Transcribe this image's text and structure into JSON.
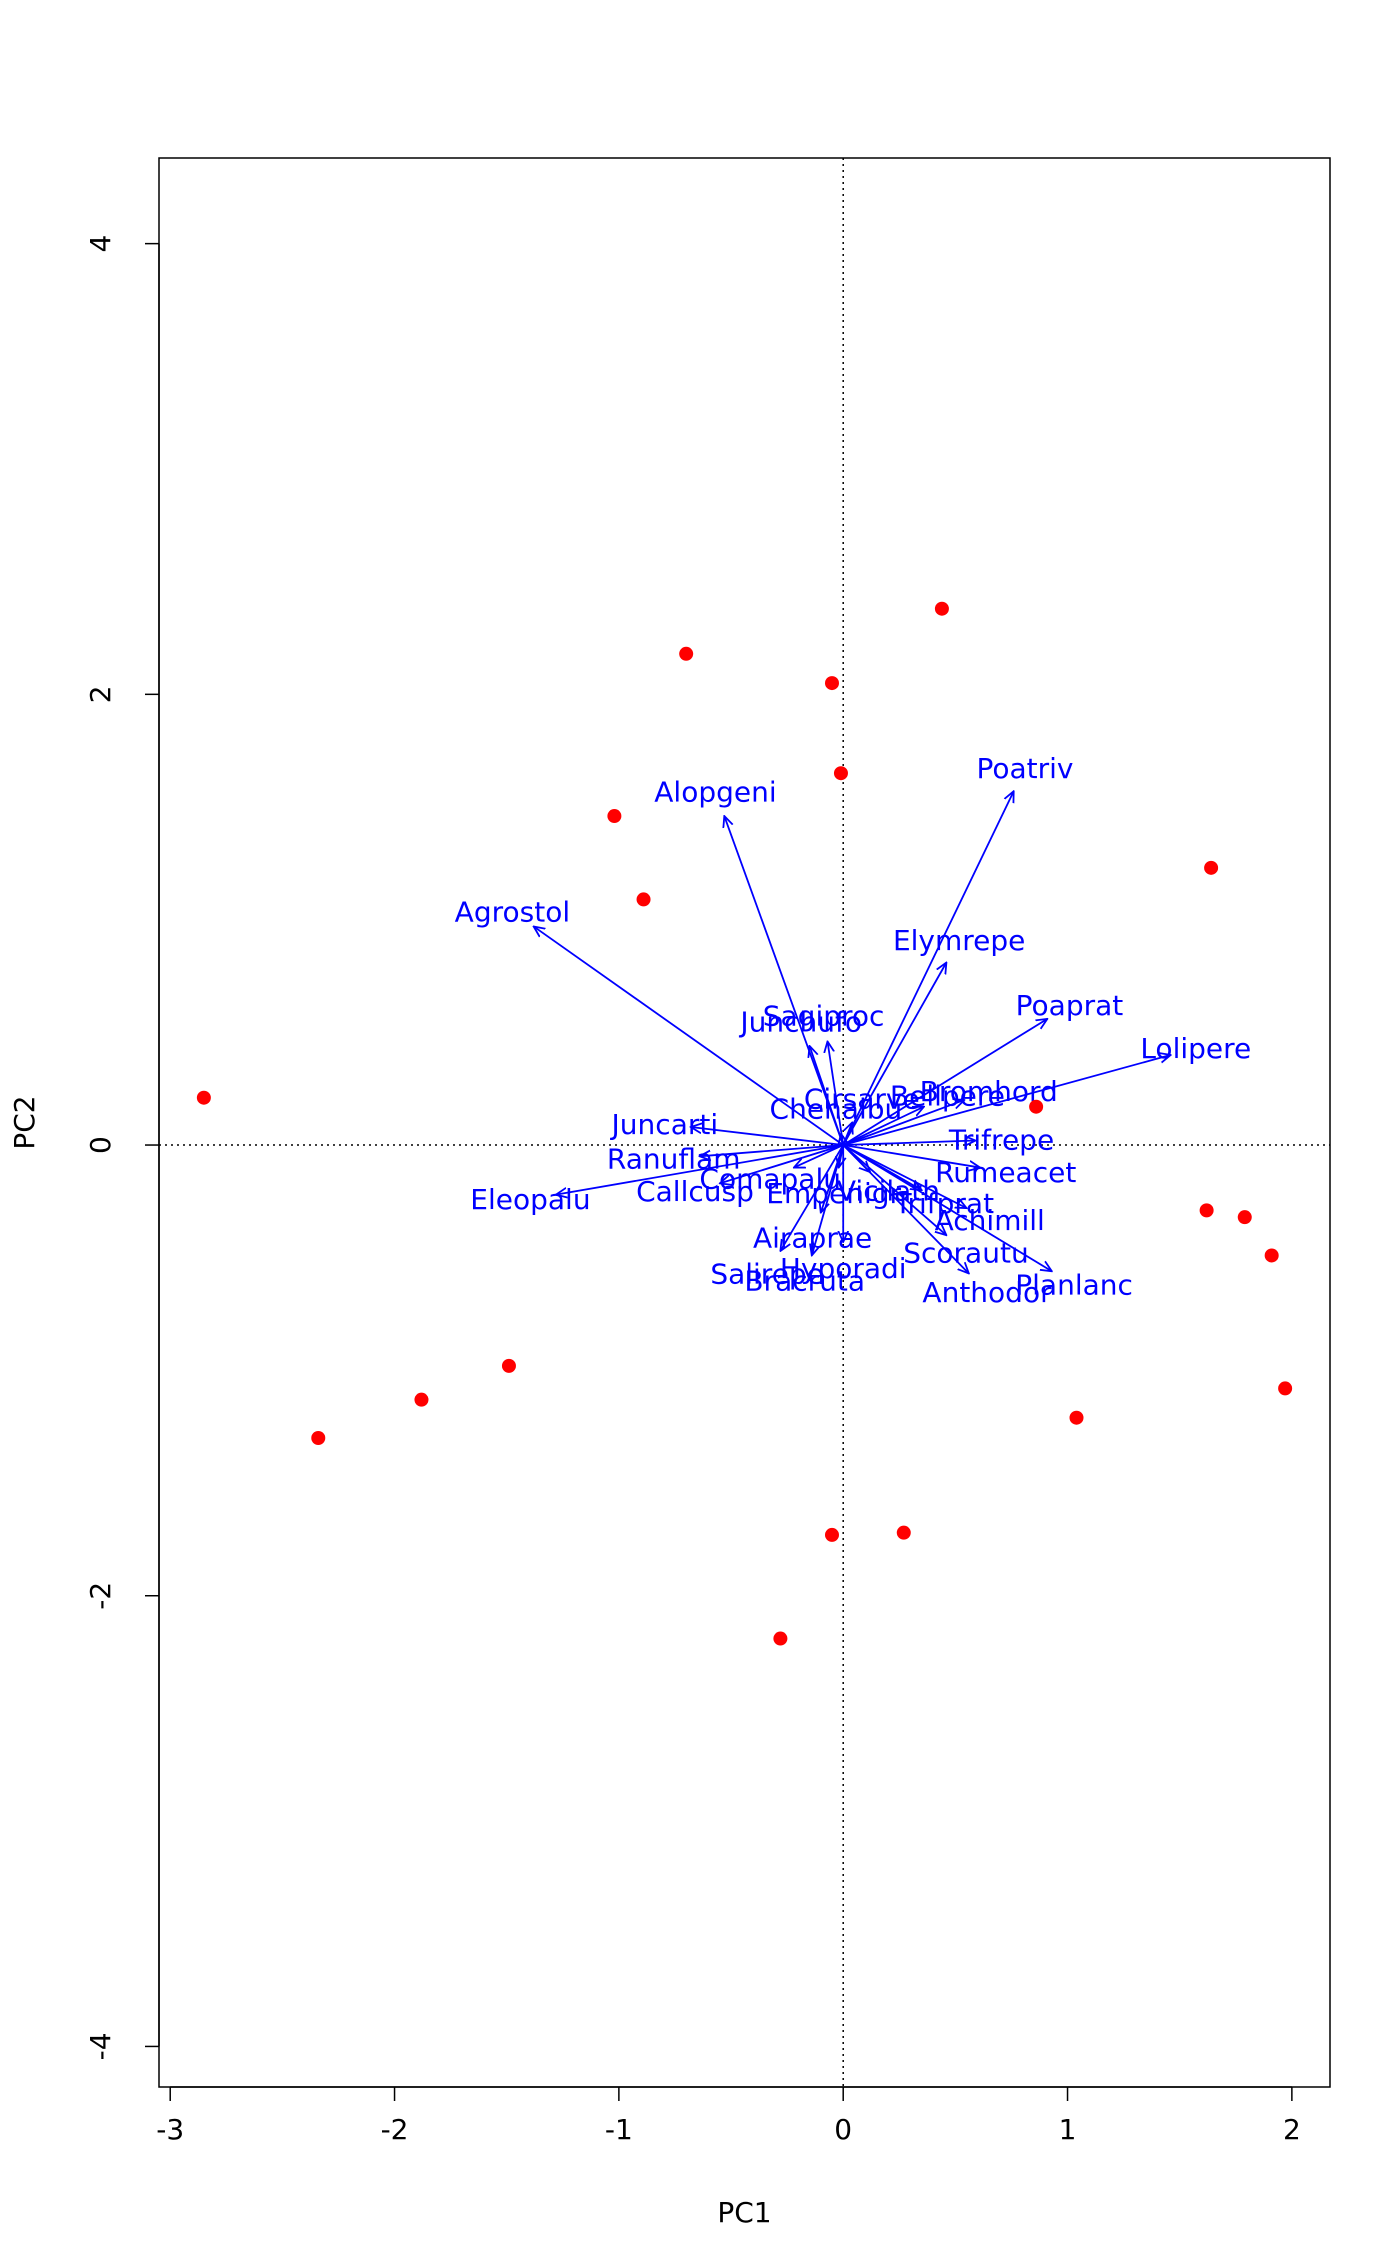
{
  "chart_data": {
    "type": "scatter",
    "title": "",
    "xlabel": "PC1",
    "ylabel": "PC2",
    "xlim": [
      -3.05,
      2.17
    ],
    "ylim": [
      -4.18,
      4.38
    ],
    "x_ticks": [
      -3,
      -2,
      -1,
      0,
      1,
      2
    ],
    "y_ticks": [
      -4,
      -2,
      0,
      2,
      4
    ],
    "grid": false,
    "reference_lines": {
      "x": 0,
      "y": 0,
      "style": "dotted"
    },
    "point_color": "#ff0000",
    "arrow_color": "#0000ff",
    "sites": [
      {
        "x": -2.85,
        "y": 0.21
      },
      {
        "x": -2.34,
        "y": -1.3
      },
      {
        "x": -1.88,
        "y": -1.13
      },
      {
        "x": -1.49,
        "y": -0.98
      },
      {
        "x": -1.02,
        "y": 1.46
      },
      {
        "x": -0.89,
        "y": 1.09
      },
      {
        "x": -0.7,
        "y": 2.18
      },
      {
        "x": -0.05,
        "y": 2.05
      },
      {
        "x": -0.01,
        "y": 1.65
      },
      {
        "x": 0.44,
        "y": 2.38
      },
      {
        "x": 1.64,
        "y": 1.23
      },
      {
        "x": 0.86,
        "y": 0.17
      },
      {
        "x": 1.62,
        "y": -0.29
      },
      {
        "x": 1.79,
        "y": -0.32
      },
      {
        "x": 1.91,
        "y": -0.49
      },
      {
        "x": 1.97,
        "y": -1.08
      },
      {
        "x": 1.04,
        "y": -1.21
      },
      {
        "x": -0.05,
        "y": -1.73
      },
      {
        "x": 0.27,
        "y": -1.72
      },
      {
        "x": -0.28,
        "y": -2.19
      }
    ],
    "species": [
      {
        "name": "Poatriv",
        "x": 0.76,
        "y": 1.57
      },
      {
        "name": "Alopgeni",
        "x": -0.53,
        "y": 1.46
      },
      {
        "name": "Agrostol",
        "x": -1.38,
        "y": 0.97
      },
      {
        "name": "Elymrepe",
        "x": 0.46,
        "y": 0.81
      },
      {
        "name": "Poaprat",
        "x": 0.91,
        "y": 0.56
      },
      {
        "name": "Lolipere",
        "x": 1.46,
        "y": 0.4
      },
      {
        "name": "Junchufo",
        "x": -0.15,
        "y": 0.44
      },
      {
        "name": "Sagiproc",
        "x": -0.07,
        "y": 0.46
      },
      {
        "name": "Bellpere",
        "x": 0.36,
        "y": 0.17
      },
      {
        "name": "Bromhord",
        "x": 0.54,
        "y": 0.2
      },
      {
        "name": "Cirsarve",
        "x": 0.04,
        "y": 0.1
      },
      {
        "name": "Chenalbu",
        "x": -0.01,
        "y": 0.05
      },
      {
        "name": "Juncarti",
        "x": -0.68,
        "y": 0.08
      },
      {
        "name": "Trifrepe",
        "x": 0.59,
        "y": 0.02
      },
      {
        "name": "Ranuflam",
        "x": -0.64,
        "y": -0.05
      },
      {
        "name": "Eleopalu",
        "x": -1.28,
        "y": -0.22
      },
      {
        "name": "Callcusp",
        "x": -0.55,
        "y": -0.17
      },
      {
        "name": "Comapalu",
        "x": -0.22,
        "y": -0.1
      },
      {
        "name": "Empenigr",
        "x": -0.02,
        "y": -0.1
      },
      {
        "name": "Vicilath",
        "x": 0.12,
        "y": -0.12
      },
      {
        "name": "Trifprat",
        "x": 0.35,
        "y": -0.2
      },
      {
        "name": "Rumeacet",
        "x": 0.61,
        "y": -0.1
      },
      {
        "name": "Achimill",
        "x": 0.55,
        "y": -0.28
      },
      {
        "name": "Airaprae",
        "x": -0.1,
        "y": -0.3
      },
      {
        "name": "Hyporadi",
        "x": 0.0,
        "y": -0.43
      },
      {
        "name": "Salirepe",
        "x": -0.28,
        "y": -0.47
      },
      {
        "name": "Bracruta",
        "x": -0.14,
        "y": -0.49
      },
      {
        "name": "Scorautu",
        "x": 0.46,
        "y": -0.4
      },
      {
        "name": "Anthodor",
        "x": 0.56,
        "y": -0.57
      },
      {
        "name": "Planlanc",
        "x": 0.93,
        "y": -0.56
      }
    ]
  }
}
